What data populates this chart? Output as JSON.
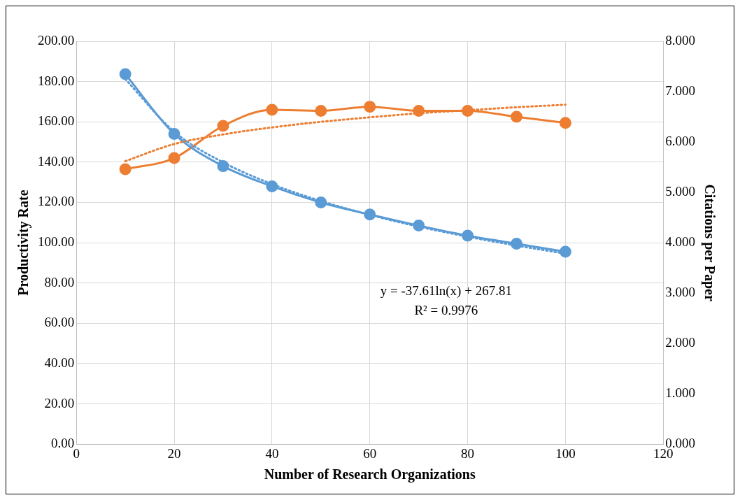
{
  "chart_data": {
    "type": "line",
    "xlabel": "Number of Research Organizations",
    "ylabel": "Productivity Rate",
    "y2label": "Citations per Paper",
    "xlim": [
      0,
      120
    ],
    "xticks": [
      0,
      20,
      40,
      60,
      80,
      100,
      120
    ],
    "ylim": [
      0,
      200
    ],
    "yticks": [
      {
        "value": 0,
        "label": "0.00"
      },
      {
        "value": 20,
        "label": "20.00"
      },
      {
        "value": 40,
        "label": "40.00"
      },
      {
        "value": 60,
        "label": "60.00"
      },
      {
        "value": 80,
        "label": "80.00"
      },
      {
        "value": 100,
        "label": "100.00"
      },
      {
        "value": 120,
        "label": "120.00"
      },
      {
        "value": 140,
        "label": "140.00"
      },
      {
        "value": 160,
        "label": "160.00"
      },
      {
        "value": 180,
        "label": "180.00"
      },
      {
        "value": 200,
        "label": "200.00"
      }
    ],
    "y2lim": [
      0,
      8
    ],
    "y2ticks": [
      {
        "value": 0,
        "label": "0.000"
      },
      {
        "value": 1,
        "label": "1.000"
      },
      {
        "value": 2,
        "label": "2.000"
      },
      {
        "value": 3,
        "label": "3.000"
      },
      {
        "value": 4,
        "label": "4.000"
      },
      {
        "value": 5,
        "label": "5.000"
      },
      {
        "value": 6,
        "label": "6.000"
      },
      {
        "value": 7,
        "label": "7.000"
      },
      {
        "value": 8,
        "label": "8.000"
      }
    ],
    "grid": true,
    "legend": false,
    "annotations": [
      "y = -37.61ln(x) + 267.81",
      "R² = 0.9976"
    ],
    "series": [
      {
        "color": "#5b9bd5",
        "marker": "none",
        "line_style": "dotted",
        "x": [
          10,
          20,
          30,
          40,
          50,
          60,
          70,
          80,
          90,
          100
        ],
        "values": [
          181.2,
          155.1,
          139.9,
          129.1,
          120.7,
          113.8,
          108.0,
          103.0,
          98.6,
          94.6
        ]
      },
      {
        "color": "#ed7d31",
        "axis": "y2",
        "marker": "none",
        "line_style": "dotted",
        "x": [
          10,
          20,
          30,
          40,
          50,
          60,
          70,
          80,
          90,
          100
        ],
        "values": [
          5.62,
          5.96,
          6.15,
          6.29,
          6.4,
          6.49,
          6.57,
          6.63,
          6.69,
          6.74
        ]
      },
      {
        "color": "#5b9bd5",
        "marker": "circle",
        "line_style": "solid",
        "x": [
          10,
          20,
          30,
          40,
          50,
          60,
          70,
          80,
          90,
          100
        ],
        "values": [
          183.7,
          154,
          138,
          128,
          120,
          114,
          108.5,
          103.5,
          99.5,
          95.5
        ]
      },
      {
        "color": "#ed7d31",
        "axis": "y2",
        "marker": "circle",
        "line_style": "solid",
        "x": [
          10,
          20,
          30,
          40,
          50,
          60,
          70,
          80,
          90,
          100
        ],
        "values": [
          5.46,
          5.68,
          6.32,
          6.64,
          6.62,
          6.7,
          6.62,
          6.62,
          6.5,
          6.38
        ]
      }
    ]
  }
}
